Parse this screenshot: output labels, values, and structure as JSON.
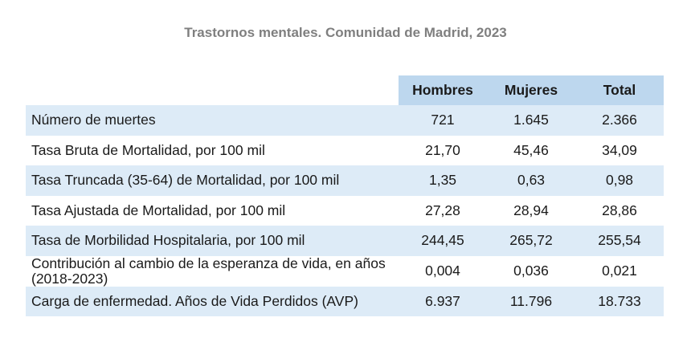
{
  "title": "Trastornos mentales. Comunidad de Madrid, 2023",
  "colors": {
    "title": "#7f7f7f",
    "header_bg": "#bdd7ee",
    "stripe_bg": "#ddebf7",
    "text": "#1a1a1a"
  },
  "table": {
    "columns": [
      "",
      "Hombres",
      "Mujeres",
      "Total"
    ],
    "rows": [
      {
        "label": "Número de muertes",
        "hombres": "721",
        "mujeres": "1.645",
        "total": "2.366"
      },
      {
        "label": "Tasa Bruta de Mortalidad, por 100 mil",
        "hombres": "21,70",
        "mujeres": "45,46",
        "total": "34,09"
      },
      {
        "label": "Tasa Truncada (35-64) de Mortalidad, por 100 mil",
        "hombres": "1,35",
        "mujeres": "0,63",
        "total": "0,98"
      },
      {
        "label": "Tasa Ajustada de Mortalidad, por 100 mil",
        "hombres": "27,28",
        "mujeres": "28,94",
        "total": "28,86"
      },
      {
        "label": "Tasa de Morbilidad Hospitalaria, por 100 mil",
        "hombres": "244,45",
        "mujeres": "265,72",
        "total": "255,54"
      },
      {
        "label": "Contribución al cambio de la esperanza de vida, en años (2018-2023)",
        "hombres": "0,004",
        "mujeres": "0,036",
        "total": "0,021"
      },
      {
        "label": "Carga de enfermedad. Años de Vida Perdidos (AVP)",
        "hombres": "6.937",
        "mujeres": "11.796",
        "total": "18.733"
      }
    ]
  }
}
